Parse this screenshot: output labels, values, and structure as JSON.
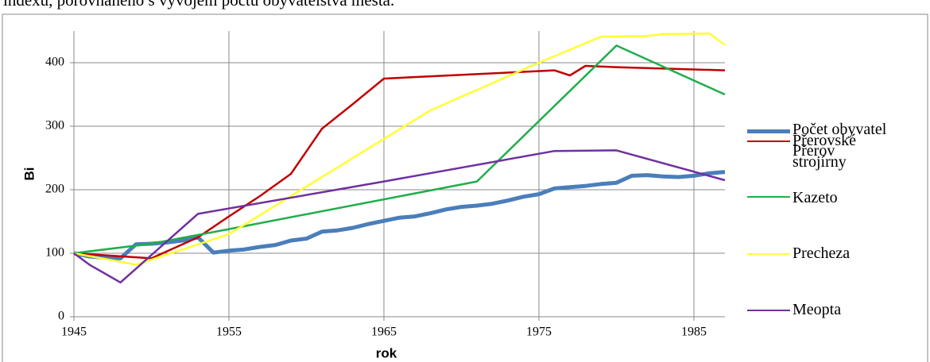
{
  "intro_text": "indexu, porovnaného s vývojem počtu obyvatelstva města.",
  "chart_data": {
    "type": "line",
    "xlabel": "rok",
    "ylabel": "Bi",
    "xlim": [
      1945,
      1987
    ],
    "xticks": [
      1945,
      1955,
      1965,
      1975,
      1985
    ],
    "ylim": [
      0,
      450
    ],
    "yticks": [
      0,
      100,
      200,
      300,
      400
    ],
    "grid": true,
    "legend": "right",
    "series": [
      {
        "name": "Počet obyvatel Přerov",
        "color": "#4a7ebb",
        "width": 5,
        "x": [
          1945,
          1946,
          1947,
          1948,
          1949,
          1950,
          1951,
          1952,
          1953,
          1954,
          1955,
          1956,
          1957,
          1958,
          1959,
          1960,
          1961,
          1962,
          1963,
          1964,
          1965,
          1966,
          1967,
          1968,
          1969,
          1970,
          1971,
          1972,
          1973,
          1974,
          1975,
          1976,
          1977,
          1978,
          1979,
          1980,
          1981,
          1982,
          1983,
          1984,
          1985,
          1986,
          1987
        ],
        "values": [
          100,
          95,
          93,
          92,
          114,
          115,
          117,
          120,
          125,
          101,
          104,
          106,
          110,
          113,
          120,
          123,
          134,
          136,
          140,
          146,
          151,
          156,
          158,
          163,
          169,
          173,
          175,
          178,
          183,
          189,
          193,
          202,
          204,
          206,
          209,
          211,
          222,
          223,
          221,
          220,
          222,
          226,
          228
        ]
      },
      {
        "name": "Přerovské strojírny",
        "color": "#c00000",
        "width": 2.5,
        "x": [
          1945,
          1950,
          1953,
          1955,
          1957,
          1959,
          1961,
          1963,
          1965,
          1976,
          1977,
          1978,
          1980,
          1987
        ],
        "values": [
          100,
          92,
          125,
          158,
          190,
          225,
          296,
          335,
          375,
          388,
          380,
          395,
          393,
          388
        ]
      },
      {
        "name": "Kazeto",
        "color": "#1fae4a",
        "width": 2.5,
        "x": [
          1945,
          1950,
          1955,
          1971,
          1980,
          1987
        ],
        "values": [
          100,
          115,
          138,
          213,
          427,
          350
        ]
      },
      {
        "name": "Precheza",
        "color": "#ffff33",
        "width": 2.5,
        "x": [
          1945,
          1949,
          1955,
          1968,
          1975,
          1979,
          1982,
          1983,
          1986,
          1987
        ],
        "values": [
          100,
          82,
          130,
          325,
          400,
          441,
          442,
          445,
          446,
          428
        ]
      },
      {
        "name": "Meopta",
        "color": "#7030a0",
        "width": 2.5,
        "x": [
          1945,
          1946,
          1948,
          1953,
          1965,
          1976,
          1980,
          1987
        ],
        "values": [
          100,
          82,
          54,
          162,
          213,
          261,
          262,
          215
        ]
      }
    ]
  }
}
